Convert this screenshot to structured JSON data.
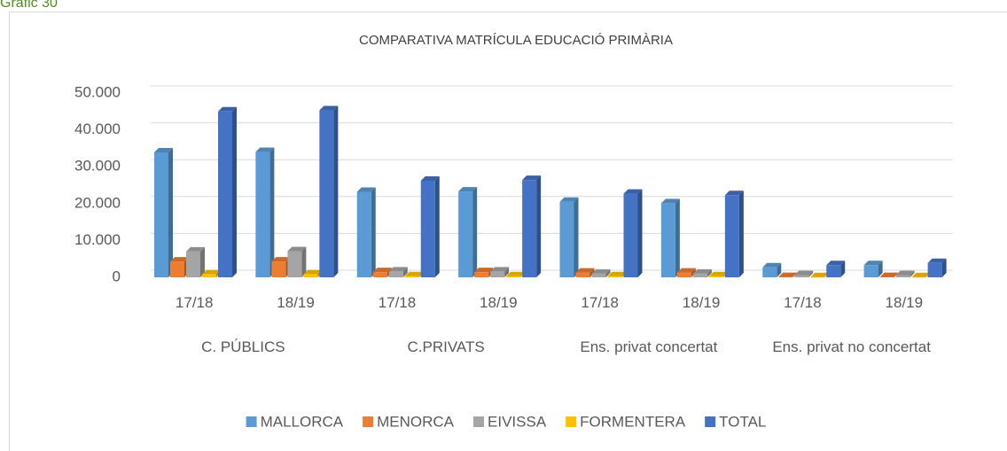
{
  "caption": "Gràfic 30",
  "chart_data": {
    "type": "bar3d",
    "title": "COMPARATIVA MATRÍCULA EDUCACIÓ PRIMÀRIA",
    "categories": [
      "17/18",
      "18/19",
      "17/18",
      "18/19",
      "17/18",
      "18/19",
      "17/18",
      "18/19"
    ],
    "category_groups": [
      "C. PÚBLICS",
      "C.PRIVATS",
      "Ens. privat concertat",
      "Ens. privat no concertat"
    ],
    "series": [
      {
        "name": "MALLORCA",
        "color": "#5b9bd5",
        "values": [
          33900,
          34000,
          23200,
          23300,
          20500,
          20100,
          2700,
          3300
        ]
      },
      {
        "name": "MENORCA",
        "color": "#ed7d31",
        "values": [
          4300,
          4300,
          1400,
          1400,
          1300,
          1300,
          100,
          100
        ]
      },
      {
        "name": "EIVISSA",
        "color": "#a5a5a5",
        "values": [
          7000,
          7100,
          1600,
          1600,
          1000,
          1000,
          600,
          600
        ]
      },
      {
        "name": "FORMENTERA",
        "color": "#ffc000",
        "values": [
          800,
          800,
          300,
          300,
          300,
          300,
          50,
          50
        ]
      },
      {
        "name": "TOTAL",
        "color": "#4472c4",
        "values": [
          45000,
          45300,
          26200,
          26400,
          22700,
          22300,
          3300,
          3900
        ]
      }
    ],
    "ylim": [
      0,
      50000
    ],
    "yticks": [
      0,
      {
        "value": 10000,
        "label": "10.000"
      },
      {
        "value": 20000,
        "label": "20.000"
      },
      {
        "value": 30000,
        "label": "30.000"
      },
      {
        "value": 40000,
        "label": "40.000"
      },
      {
        "value": 50000,
        "label": "50.000"
      }
    ],
    "grid": true,
    "legend": "bottom"
  }
}
